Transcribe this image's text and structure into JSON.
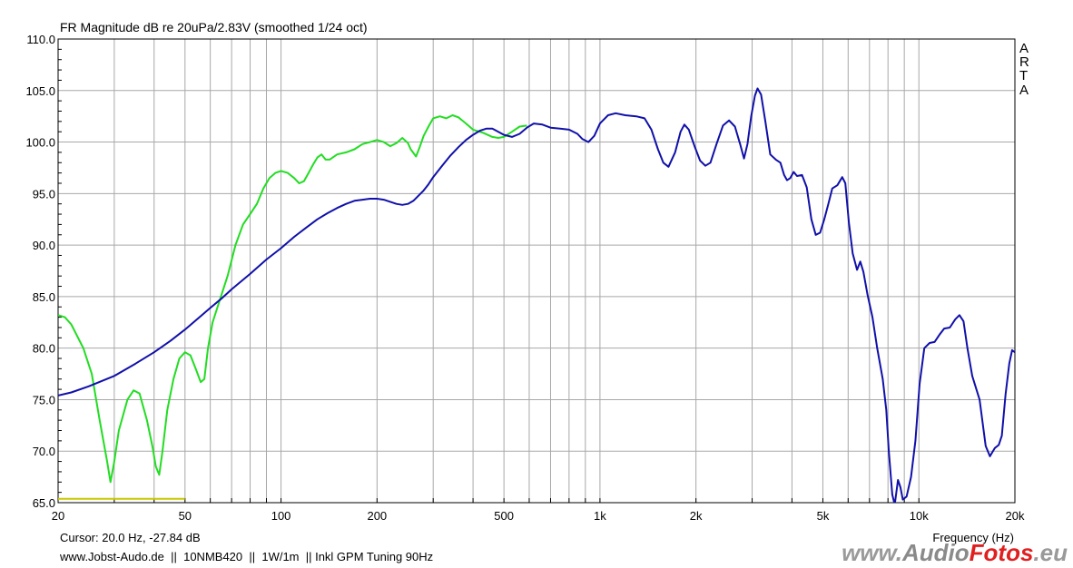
{
  "chart_data": {
    "type": "line",
    "title": "FR Magnitude dB re 20uPa/2.83V (smoothed 1/24 oct)",
    "xlabel": "Frequency (Hz)",
    "ylabel": "",
    "x_scale": "log",
    "xlim": [
      20,
      20000
    ],
    "ylim": [
      65,
      110
    ],
    "grid": true,
    "x_tick_labels": [
      {
        "value": 20,
        "label": "20"
      },
      {
        "value": 50,
        "label": "50"
      },
      {
        "value": 100,
        "label": "100"
      },
      {
        "value": 200,
        "label": "200"
      },
      {
        "value": 500,
        "label": "500"
      },
      {
        "value": 1000,
        "label": "1k"
      },
      {
        "value": 2000,
        "label": "2k"
      },
      {
        "value": 5000,
        "label": "5k"
      },
      {
        "value": 10000,
        "label": "10k"
      },
      {
        "value": 20000,
        "label": "20k"
      }
    ],
    "y_tick_labels": [
      {
        "value": 110,
        "label": "110.0"
      },
      {
        "value": 105,
        "label": "105.0"
      },
      {
        "value": 100,
        "label": "100.0"
      },
      {
        "value": 95,
        "label": "95.0"
      },
      {
        "value": 90,
        "label": "90.0"
      },
      {
        "value": 85,
        "label": "85.0"
      },
      {
        "value": 80,
        "label": "80.0"
      },
      {
        "value": 75,
        "label": "75.0"
      },
      {
        "value": 70,
        "label": "70.0"
      },
      {
        "value": 65,
        "label": "65.0"
      }
    ],
    "series": [
      {
        "color": "#22dd22",
        "points": [
          [
            20,
            83.2
          ],
          [
            21,
            83
          ],
          [
            22,
            82.3
          ],
          [
            24,
            80
          ],
          [
            25.5,
            77.5
          ],
          [
            27,
            73
          ],
          [
            28.5,
            69
          ],
          [
            29.2,
            67
          ],
          [
            30,
            69
          ],
          [
            31,
            72
          ],
          [
            33,
            75
          ],
          [
            34.5,
            75.9
          ],
          [
            36,
            75.6
          ],
          [
            38,
            73
          ],
          [
            39.5,
            70.5
          ],
          [
            40.5,
            68.5
          ],
          [
            41.5,
            67.7
          ],
          [
            42.5,
            70
          ],
          [
            44,
            74
          ],
          [
            46,
            77
          ],
          [
            48,
            79
          ],
          [
            50,
            79.6
          ],
          [
            52,
            79.3
          ],
          [
            54,
            78
          ],
          [
            56,
            76.7
          ],
          [
            57.5,
            77
          ],
          [
            59,
            80
          ],
          [
            61,
            82.5
          ],
          [
            64,
            84.5
          ],
          [
            68,
            87
          ],
          [
            72,
            90
          ],
          [
            76,
            92
          ],
          [
            80,
            93
          ],
          [
            84,
            94
          ],
          [
            88,
            95.5
          ],
          [
            92,
            96.5
          ],
          [
            96,
            97
          ],
          [
            100,
            97.2
          ],
          [
            105,
            97
          ],
          [
            110,
            96.5
          ],
          [
            114,
            96
          ],
          [
            118,
            96.2
          ],
          [
            122,
            97
          ],
          [
            126,
            97.8
          ],
          [
            130,
            98.5
          ],
          [
            134,
            98.8
          ],
          [
            138,
            98.3
          ],
          [
            142,
            98.3
          ],
          [
            150,
            98.8
          ],
          [
            160,
            99
          ],
          [
            170,
            99.3
          ],
          [
            180,
            99.8
          ],
          [
            190,
            100
          ],
          [
            200,
            100.2
          ],
          [
            210,
            100
          ],
          [
            220,
            99.6
          ],
          [
            230,
            99.9
          ],
          [
            240,
            100.4
          ],
          [
            250,
            99.9
          ],
          [
            255,
            99.3
          ],
          [
            265,
            98.6
          ],
          [
            272,
            99.5
          ],
          [
            280,
            100.6
          ],
          [
            290,
            101.5
          ],
          [
            300,
            102.3
          ],
          [
            315,
            102.5
          ],
          [
            330,
            102.3
          ],
          [
            345,
            102.6
          ],
          [
            360,
            102.4
          ],
          [
            380,
            101.8
          ],
          [
            400,
            101.2
          ],
          [
            430,
            100.9
          ],
          [
            460,
            100.5
          ],
          [
            480,
            100.4
          ],
          [
            500,
            100.5
          ],
          [
            530,
            101
          ],
          [
            560,
            101.5
          ],
          [
            590,
            101.6
          ]
        ]
      },
      {
        "color": "#1010aa",
        "points": [
          [
            20,
            75.4
          ],
          [
            22,
            75.7
          ],
          [
            25,
            76.3
          ],
          [
            30,
            77.3
          ],
          [
            35,
            78.5
          ],
          [
            40,
            79.6
          ],
          [
            45,
            80.7
          ],
          [
            50,
            81.8
          ],
          [
            55,
            82.9
          ],
          [
            60,
            83.9
          ],
          [
            65,
            84.8
          ],
          [
            70,
            85.7
          ],
          [
            80,
            87.2
          ],
          [
            90,
            88.6
          ],
          [
            100,
            89.7
          ],
          [
            110,
            90.8
          ],
          [
            120,
            91.7
          ],
          [
            130,
            92.5
          ],
          [
            140,
            93.1
          ],
          [
            150,
            93.6
          ],
          [
            160,
            94
          ],
          [
            170,
            94.3
          ],
          [
            180,
            94.4
          ],
          [
            190,
            94.5
          ],
          [
            200,
            94.5
          ],
          [
            210,
            94.4
          ],
          [
            220,
            94.2
          ],
          [
            230,
            94
          ],
          [
            240,
            93.9
          ],
          [
            250,
            94
          ],
          [
            260,
            94.3
          ],
          [
            270,
            94.8
          ],
          [
            280,
            95.3
          ],
          [
            290,
            95.9
          ],
          [
            300,
            96.6
          ],
          [
            320,
            97.7
          ],
          [
            340,
            98.7
          ],
          [
            360,
            99.5
          ],
          [
            380,
            100.2
          ],
          [
            400,
            100.7
          ],
          [
            420,
            101.1
          ],
          [
            440,
            101.3
          ],
          [
            460,
            101.3
          ],
          [
            480,
            101
          ],
          [
            500,
            100.7
          ],
          [
            530,
            100.5
          ],
          [
            560,
            100.8
          ],
          [
            590,
            101.4
          ],
          [
            620,
            101.8
          ],
          [
            660,
            101.7
          ],
          [
            700,
            101.4
          ],
          [
            750,
            101.3
          ],
          [
            800,
            101.2
          ],
          [
            850,
            100.8
          ],
          [
            880,
            100.3
          ],
          [
            920,
            100
          ],
          [
            960,
            100.6
          ],
          [
            1000,
            101.8
          ],
          [
            1060,
            102.6
          ],
          [
            1120,
            102.8
          ],
          [
            1200,
            102.6
          ],
          [
            1300,
            102.5
          ],
          [
            1380,
            102.3
          ],
          [
            1450,
            101.2
          ],
          [
            1520,
            99.3
          ],
          [
            1580,
            98
          ],
          [
            1640,
            97.6
          ],
          [
            1720,
            99
          ],
          [
            1790,
            101
          ],
          [
            1840,
            101.7
          ],
          [
            1900,
            101.2
          ],
          [
            1980,
            99.6
          ],
          [
            2060,
            98.2
          ],
          [
            2140,
            97.7
          ],
          [
            2220,
            98
          ],
          [
            2320,
            99.8
          ],
          [
            2430,
            101.6
          ],
          [
            2540,
            102.1
          ],
          [
            2650,
            101.5
          ],
          [
            2750,
            99.8
          ],
          [
            2830,
            98.4
          ],
          [
            2900,
            99.8
          ],
          [
            2980,
            102.5
          ],
          [
            3060,
            104.5
          ],
          [
            3120,
            105.2
          ],
          [
            3200,
            104.6
          ],
          [
            3300,
            102
          ],
          [
            3420,
            98.8
          ],
          [
            3560,
            98.3
          ],
          [
            3680,
            98
          ],
          [
            3780,
            96.8
          ],
          [
            3860,
            96.3
          ],
          [
            3950,
            96.5
          ],
          [
            4050,
            97.1
          ],
          [
            4150,
            96.7
          ],
          [
            4300,
            96.8
          ],
          [
            4450,
            95.6
          ],
          [
            4600,
            92.5
          ],
          [
            4750,
            91
          ],
          [
            4900,
            91.2
          ],
          [
            5050,
            92.5
          ],
          [
            5200,
            94
          ],
          [
            5350,
            95.5
          ],
          [
            5550,
            95.8
          ],
          [
            5750,
            96.6
          ],
          [
            5880,
            96
          ],
          [
            6030,
            92.2
          ],
          [
            6200,
            89.2
          ],
          [
            6400,
            87.6
          ],
          [
            6550,
            88.4
          ],
          [
            6700,
            87.4
          ],
          [
            6900,
            85.2
          ],
          [
            7150,
            83
          ],
          [
            7400,
            80
          ],
          [
            7700,
            77
          ],
          [
            7900,
            74
          ],
          [
            8050,
            70
          ],
          [
            8250,
            65.8
          ],
          [
            8400,
            64.8
          ],
          [
            8600,
            67.2
          ],
          [
            8750,
            66.5
          ],
          [
            8900,
            65.3
          ],
          [
            9150,
            65.6
          ],
          [
            9450,
            67.5
          ],
          [
            9750,
            71
          ],
          [
            10050,
            76.5
          ],
          [
            10400,
            80
          ],
          [
            10800,
            80.5
          ],
          [
            11200,
            80.6
          ],
          [
            11600,
            81.3
          ],
          [
            12000,
            81.9
          ],
          [
            12500,
            82
          ],
          [
            13000,
            82.8
          ],
          [
            13400,
            83.2
          ],
          [
            13800,
            82.6
          ],
          [
            14200,
            80
          ],
          [
            14700,
            77.3
          ],
          [
            15500,
            75
          ],
          [
            16200,
            70.5
          ],
          [
            16700,
            69.5
          ],
          [
            17300,
            70.3
          ],
          [
            17800,
            70.6
          ],
          [
            18200,
            71.5
          ],
          [
            18700,
            75.5
          ],
          [
            19200,
            78.5
          ],
          [
            19600,
            79.8
          ],
          [
            20000,
            79.6
          ]
        ]
      }
    ],
    "cursor_trace": {
      "color": "#c8c800",
      "x_range": [
        20,
        50
      ],
      "y": 65.2
    },
    "cursor_readout": "Cursor: 20.0 Hz, -27.84 dB",
    "footer_text": "www.Jobst-Audo.de  ||  10NMB420  ||  1W/1m  || Inkl GPM Tuning 90Hz",
    "side_label": [
      "A",
      "R",
      "T",
      "A"
    ],
    "watermark": {
      "www": "www.",
      "audio": "Audio",
      "fotos": "Fotos",
      "eu": ".eu"
    }
  }
}
